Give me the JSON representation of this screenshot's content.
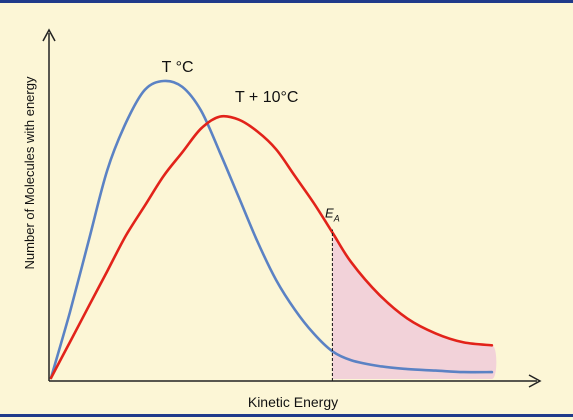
{
  "chart_data": {
    "type": "line",
    "title": "",
    "xlabel": "Kinetic Energy",
    "ylabel": "Number of Molecules with energy",
    "xlim": [
      0,
      10
    ],
    "ylim": [
      0,
      10
    ],
    "grid": false,
    "legend": "none",
    "series": [
      {
        "name": "T °C",
        "color": "#5b82c4",
        "x": [
          0,
          0.4,
          0.8,
          1.2,
          1.6,
          2.0,
          2.4,
          2.8,
          3.2,
          3.6,
          4.0,
          4.4,
          4.8,
          5.2,
          5.6,
          6.0,
          6.4,
          7.0,
          7.6,
          8.2,
          8.8,
          9.4
        ],
        "y": [
          0,
          2.2,
          4.6,
          7.0,
          8.6,
          9.7,
          10.0,
          9.8,
          9.0,
          7.6,
          6.1,
          4.6,
          3.3,
          2.3,
          1.5,
          0.9,
          0.6,
          0.4,
          0.3,
          0.25,
          0.2,
          0.2
        ]
      },
      {
        "name": "T + 10°C",
        "color": "#e2231a",
        "x": [
          0,
          0.4,
          0.8,
          1.2,
          1.6,
          2.0,
          2.4,
          2.8,
          3.2,
          3.6,
          4.0,
          4.4,
          4.8,
          5.2,
          5.6,
          6.0,
          6.4,
          7.0,
          7.6,
          8.2,
          8.8,
          9.4
        ],
        "y": [
          0,
          1.2,
          2.4,
          3.6,
          4.8,
          5.8,
          6.8,
          7.6,
          8.4,
          8.8,
          8.7,
          8.3,
          7.7,
          6.8,
          5.9,
          4.9,
          3.9,
          2.8,
          2.0,
          1.5,
          1.2,
          1.1
        ]
      }
    ],
    "annotations": [
      {
        "text": "T °C",
        "x": 2.7,
        "y": 10.3
      },
      {
        "text": "T + 10°C",
        "x": 4.6,
        "y": 9.3
      },
      {
        "text": "E",
        "subscript": "A",
        "x": 6.0,
        "y": 5.4
      }
    ],
    "threshold": {
      "label": "E",
      "subscript": "A",
      "x": 6.0
    },
    "shaded_region": {
      "from_x": 6.0,
      "color": "#f2d2d9"
    }
  }
}
